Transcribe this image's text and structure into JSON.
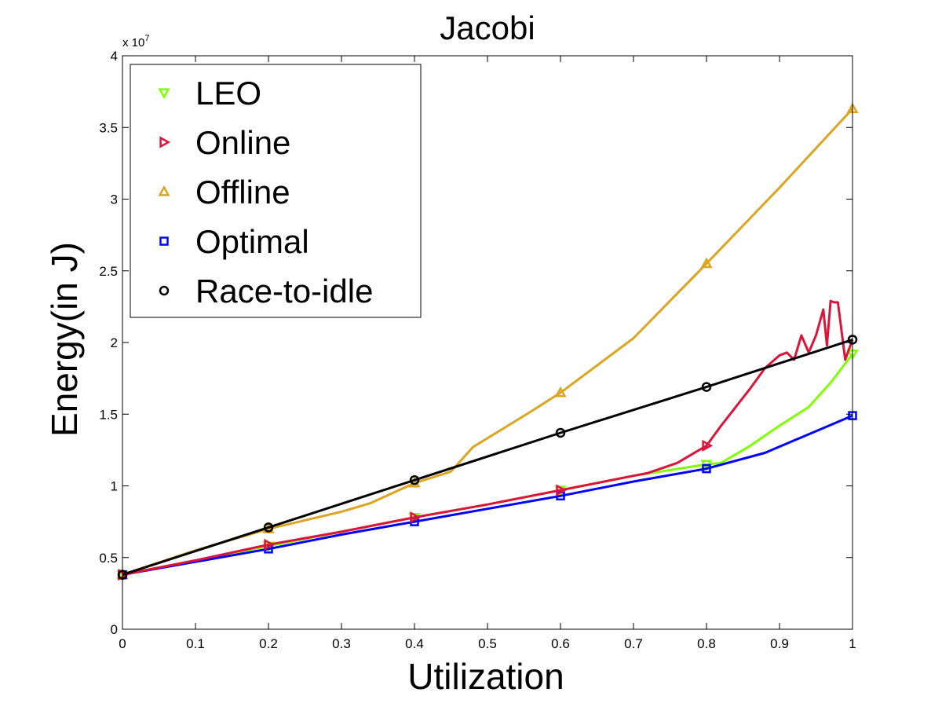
{
  "chart_data": {
    "type": "line",
    "title": "Jacobi",
    "xlabel": "Utilization",
    "ylabel": "Energy(in J)",
    "y_scale_label": "x 10",
    "y_scale_exponent": "7",
    "xlim": [
      0,
      1
    ],
    "ylim": [
      0,
      4
    ],
    "x_ticks": [
      "0",
      "0.1",
      "0.2",
      "0.3",
      "0.4",
      "0.5",
      "0.6",
      "0.7",
      "0.8",
      "0.9",
      "1"
    ],
    "y_ticks": [
      "0",
      "0.5",
      "1",
      "1.5",
      "2",
      "2.5",
      "3",
      "3.5",
      "4"
    ],
    "grid": false,
    "legend_position": "top-left",
    "series": [
      {
        "name": "LEO",
        "color": "#80ff00",
        "marker": "triangle-down",
        "x": [
          0,
          0.1,
          0.2,
          0.3,
          0.4,
          0.5,
          0.6,
          0.7,
          0.8,
          0.82,
          0.86,
          0.9,
          0.94,
          0.97,
          1.0
        ],
        "y": [
          0.38,
          0.48,
          0.58,
          0.68,
          0.78,
          0.87,
          0.97,
          1.07,
          1.15,
          1.16,
          1.28,
          1.42,
          1.55,
          1.72,
          1.92
        ],
        "marker_x": [
          0,
          0.2,
          0.4,
          0.6,
          0.8,
          1.0
        ],
        "marker_y": [
          0.38,
          0.58,
          0.78,
          0.97,
          1.15,
          1.92
        ]
      },
      {
        "name": "Online",
        "color": "#dc143c",
        "marker": "triangle-right",
        "x": [
          0,
          0.1,
          0.2,
          0.3,
          0.4,
          0.5,
          0.6,
          0.7,
          0.72,
          0.76,
          0.8,
          0.82,
          0.86,
          0.88,
          0.9,
          0.91,
          0.92,
          0.93,
          0.94,
          0.95,
          0.96,
          0.965,
          0.97,
          0.975,
          0.98,
          0.99,
          1.0
        ],
        "y": [
          0.38,
          0.48,
          0.59,
          0.68,
          0.78,
          0.87,
          0.97,
          1.07,
          1.09,
          1.16,
          1.28,
          1.42,
          1.68,
          1.82,
          1.91,
          1.93,
          1.88,
          2.05,
          1.93,
          2.05,
          2.23,
          1.98,
          2.29,
          2.28,
          2.28,
          1.88,
          2.02
        ],
        "marker_x": [
          0,
          0.2,
          0.4,
          0.6,
          0.8
        ],
        "marker_y": [
          0.38,
          0.59,
          0.78,
          0.97,
          1.28
        ]
      },
      {
        "name": "Offline",
        "color": "#daa520",
        "marker": "triangle-up",
        "x": [
          0,
          0.1,
          0.2,
          0.3,
          0.34,
          0.4,
          0.45,
          0.48,
          0.56,
          0.6,
          0.7,
          0.8,
          0.9,
          1.0
        ],
        "y": [
          0.38,
          0.55,
          0.7,
          0.82,
          0.88,
          1.02,
          1.1,
          1.27,
          1.52,
          1.65,
          2.03,
          2.55,
          3.08,
          3.63
        ],
        "marker_x": [
          0,
          0.2,
          0.4,
          0.6,
          0.8,
          1.0
        ],
        "marker_y": [
          0.38,
          0.7,
          1.02,
          1.65,
          2.55,
          3.63
        ]
      },
      {
        "name": "Optimal",
        "color": "#0000ff",
        "marker": "square",
        "x": [
          0,
          0.1,
          0.2,
          0.3,
          0.4,
          0.5,
          0.6,
          0.7,
          0.8,
          0.88,
          1.0
        ],
        "y": [
          0.38,
          0.47,
          0.56,
          0.66,
          0.75,
          0.84,
          0.93,
          1.03,
          1.12,
          1.23,
          1.49
        ],
        "marker_x": [
          0,
          0.2,
          0.4,
          0.6,
          0.8,
          1.0
        ],
        "marker_y": [
          0.38,
          0.56,
          0.75,
          0.93,
          1.12,
          1.49
        ]
      },
      {
        "name": "Race-to-idle",
        "color": "#000000",
        "marker": "circle",
        "x": [
          0,
          0.2,
          0.4,
          0.6,
          0.8,
          1.0
        ],
        "y": [
          0.38,
          0.71,
          1.04,
          1.37,
          1.69,
          2.02
        ],
        "marker_x": [
          0,
          0.2,
          0.4,
          0.6,
          0.8,
          1.0
        ],
        "marker_y": [
          0.38,
          0.71,
          1.04,
          1.37,
          1.69,
          2.02
        ]
      }
    ]
  }
}
